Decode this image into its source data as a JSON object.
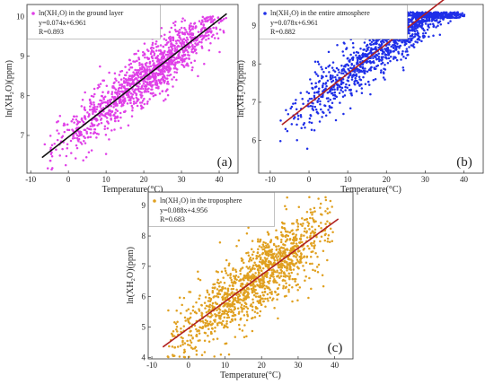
{
  "chart_data": [
    {
      "type": "scatter",
      "panel_label": "(a)",
      "legend": "ln(XH₂O) in the ground layer",
      "equation": "y=0.074x+6.961",
      "r_text": "R=0.893",
      "xlabel": "Temperature(°C)",
      "ylabel": "ln(XH₂O)(ppm)",
      "xlim": [
        -11,
        45
      ],
      "ylim": [
        6.05,
        10.3
      ],
      "xticks": [
        "-10",
        "0",
        "10",
        "20",
        "30",
        "40"
      ],
      "xtick_values": [
        -10,
        0,
        10,
        20,
        30,
        40
      ],
      "yticks": [
        "7",
        "8",
        "9",
        "10"
      ],
      "ytick_values": [
        7,
        8,
        9,
        10
      ],
      "point_color": "#e040e8",
      "line_color": "#111111",
      "line": {
        "slope": 0.074,
        "intercept": 6.961,
        "x_range": [
          -7,
          42
        ]
      },
      "cloud": {
        "x_min": -8,
        "x_max": 42,
        "x_mode": 25,
        "n": 1300,
        "sd": 0.4,
        "y_cap": 10.0,
        "y_min": 6.1
      }
    },
    {
      "type": "scatter",
      "panel_label": "(b)",
      "legend": "ln(XH₂O) in the entire atmosphere",
      "equation": "y=0.078x+6.961",
      "r_text": "R=0.882",
      "xlabel": "Temperature(°C)",
      "ylabel": "ln(XH₂O)(ppm)",
      "xlim": [
        -13,
        45
      ],
      "ylim": [
        5.15,
        9.55
      ],
      "xticks": [
        "-10",
        "0",
        "10",
        "20",
        "30",
        "40"
      ],
      "xtick_values": [
        -10,
        0,
        10,
        20,
        30,
        40
      ],
      "yticks": [
        "6",
        "7",
        "8",
        "9"
      ],
      "ytick_values": [
        6,
        7,
        8,
        9
      ],
      "point_color": "#1f2fe8",
      "line_color": "#b02020",
      "line": {
        "slope": 0.078,
        "intercept": 6.961,
        "x_range": [
          -7,
          41
        ]
      },
      "cloud": {
        "x_min": -8,
        "x_max": 41,
        "x_mode": 28,
        "n": 1300,
        "sd": 0.42,
        "y_cap": 9.35,
        "y_min": 5.3
      }
    },
    {
      "type": "scatter",
      "panel_label": "(c)",
      "legend": "ln(XH₂O) in the troposphere",
      "equation": "y=0.088x+4.956",
      "r_text": "R=0.683",
      "xlabel": "Temperature(°C)",
      "ylabel": "ln(XH₂O)(ppm)",
      "xlim": [
        -11,
        45
      ],
      "ylim": [
        3.95,
        9.45
      ],
      "xticks": [
        "-10",
        "0",
        "10",
        "20",
        "30",
        "40"
      ],
      "xtick_values": [
        -10,
        0,
        10,
        20,
        30,
        40
      ],
      "yticks": [
        "4",
        "5",
        "6",
        "7",
        "8",
        "9"
      ],
      "ytick_values": [
        4,
        5,
        6,
        7,
        8,
        9
      ],
      "point_color": "#e0a020",
      "line_color": "#b02020",
      "line": {
        "slope": 0.088,
        "intercept": 4.956,
        "x_range": [
          -7,
          41
        ]
      },
      "cloud": {
        "x_min": -8,
        "x_max": 41,
        "x_mode": 22,
        "n": 1300,
        "sd": 0.75,
        "y_cap": 9.3,
        "y_min": 4.0
      }
    }
  ]
}
